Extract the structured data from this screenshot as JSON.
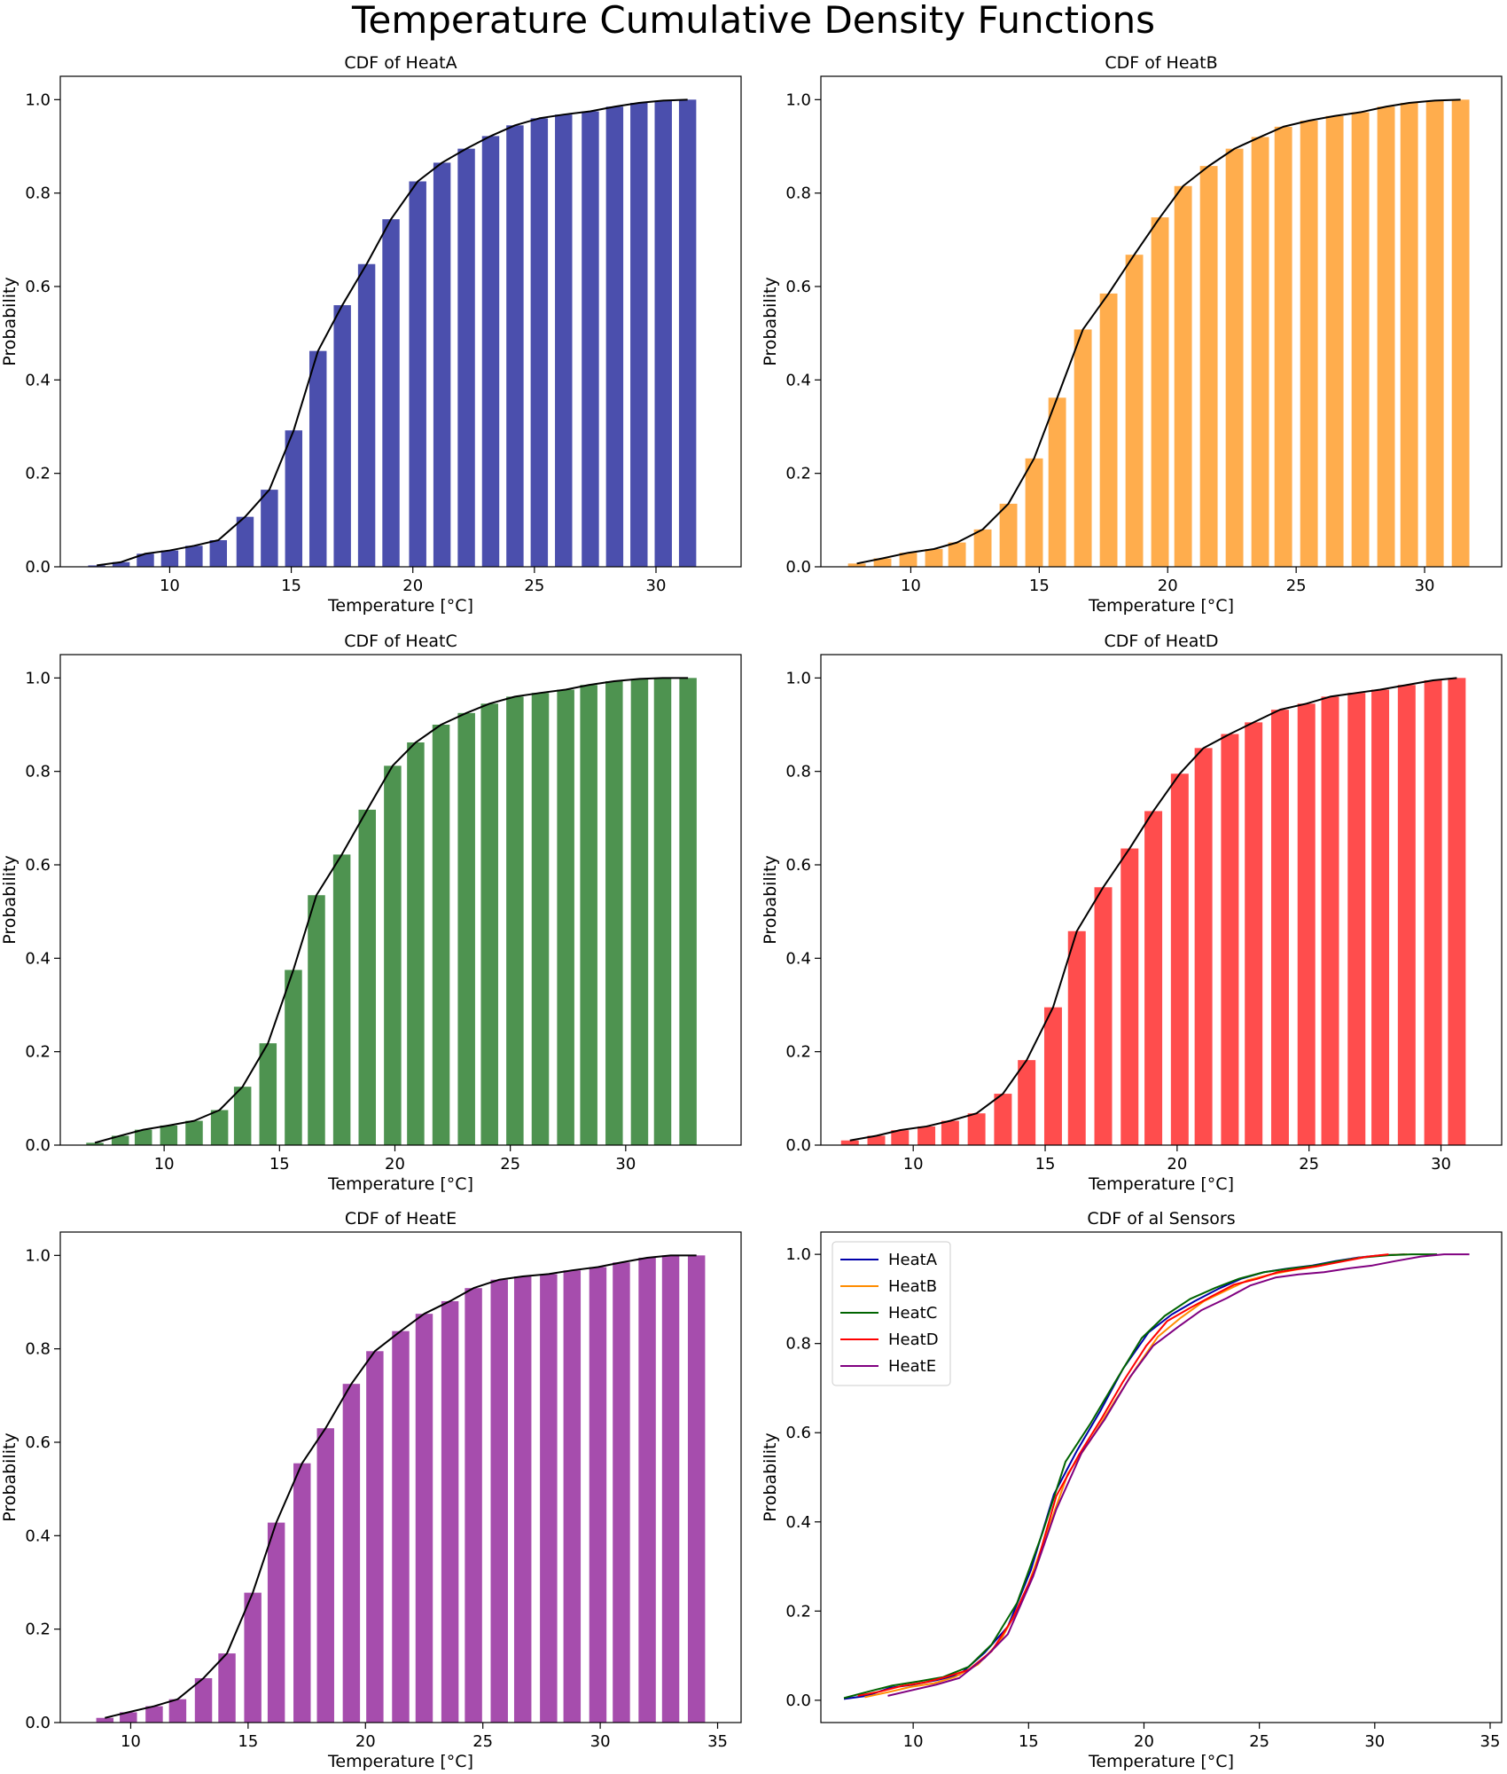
{
  "page": {
    "title": "Temperature Cumulative Density Functions"
  },
  "chart_data": [
    {
      "type": "bar",
      "title": "CDF of HeatA",
      "xlabel": "Temperature [°C]",
      "ylabel": "Probability",
      "bar_color": "#4b4fad",
      "line_color": "#000000",
      "xlim": [
        5.5,
        33.5
      ],
      "ylim": [
        0,
        1.05
      ],
      "xticks": [
        10,
        15,
        20,
        25,
        30
      ],
      "yticks": [
        0.0,
        0.2,
        0.4,
        0.6,
        0.8,
        1.0
      ],
      "x": [
        7.0,
        8.0,
        9.0,
        10.0,
        11.0,
        12.0,
        13.1,
        14.1,
        15.1,
        16.1,
        17.1,
        18.1,
        19.1,
        20.2,
        21.2,
        22.2,
        23.2,
        24.2,
        25.2,
        26.2,
        27.3,
        28.3,
        29.3,
        30.3,
        31.3
      ],
      "values": [
        0.003,
        0.01,
        0.028,
        0.035,
        0.045,
        0.057,
        0.107,
        0.165,
        0.292,
        0.462,
        0.56,
        0.648,
        0.744,
        0.825,
        0.865,
        0.895,
        0.922,
        0.945,
        0.96,
        0.968,
        0.975,
        0.985,
        0.993,
        0.998,
        1.0
      ]
    },
    {
      "type": "bar",
      "title": "CDF of HeatB",
      "xlabel": "Temperature [°C]",
      "ylabel": "Probability",
      "bar_color": "#ffad4d",
      "line_color": "#000000",
      "xlim": [
        6.5,
        33.0
      ],
      "ylim": [
        0,
        1.05
      ],
      "xticks": [
        10,
        15,
        20,
        25,
        30
      ],
      "yticks": [
        0.0,
        0.2,
        0.4,
        0.6,
        0.8,
        1.0
      ],
      "x": [
        7.9,
        8.9,
        9.9,
        10.9,
        11.8,
        12.8,
        13.8,
        14.8,
        15.7,
        16.7,
        17.7,
        18.7,
        19.7,
        20.6,
        21.6,
        22.6,
        23.6,
        24.5,
        25.5,
        26.5,
        27.5,
        28.5,
        29.4,
        30.4,
        31.4
      ],
      "values": [
        0.007,
        0.018,
        0.03,
        0.038,
        0.052,
        0.08,
        0.135,
        0.232,
        0.362,
        0.508,
        0.585,
        0.668,
        0.748,
        0.815,
        0.858,
        0.895,
        0.92,
        0.942,
        0.955,
        0.965,
        0.973,
        0.985,
        0.993,
        0.998,
        1.0
      ]
    },
    {
      "type": "bar",
      "title": "CDF of HeatC",
      "xlabel": "Temperature [°C]",
      "ylabel": "Probability",
      "bar_color": "#4e9350",
      "line_color": "#000000",
      "xlim": [
        5.5,
        35.0
      ],
      "ylim": [
        0,
        1.05
      ],
      "xticks": [
        10,
        15,
        20,
        25,
        30
      ],
      "yticks": [
        0.0,
        0.2,
        0.4,
        0.6,
        0.8,
        1.0
      ],
      "x": [
        7.0,
        8.1,
        9.1,
        10.2,
        11.3,
        12.4,
        13.4,
        14.5,
        15.6,
        16.6,
        17.7,
        18.8,
        19.9,
        20.9,
        22.0,
        23.1,
        24.1,
        25.2,
        26.3,
        27.4,
        28.4,
        29.5,
        30.6,
        31.6,
        32.7
      ],
      "values": [
        0.005,
        0.02,
        0.033,
        0.042,
        0.052,
        0.075,
        0.125,
        0.218,
        0.375,
        0.535,
        0.622,
        0.718,
        0.812,
        0.862,
        0.9,
        0.925,
        0.945,
        0.96,
        0.968,
        0.975,
        0.985,
        0.993,
        0.998,
        1.0,
        1.0
      ]
    },
    {
      "type": "bar",
      "title": "CDF of HeatD",
      "xlabel": "Temperature [°C]",
      "ylabel": "Probability",
      "bar_color": "#ff4d4d",
      "line_color": "#000000",
      "xlim": [
        6.5,
        32.3
      ],
      "ylim": [
        0,
        1.05
      ],
      "xticks": [
        10,
        15,
        20,
        25,
        30
      ],
      "yticks": [
        0.0,
        0.2,
        0.4,
        0.6,
        0.8,
        1.0
      ],
      "x": [
        7.6,
        8.6,
        9.5,
        10.5,
        11.4,
        12.4,
        13.4,
        14.3,
        15.3,
        16.2,
        17.2,
        18.2,
        19.1,
        20.1,
        21.0,
        22.0,
        22.9,
        23.9,
        24.9,
        25.8,
        26.8,
        27.7,
        28.7,
        29.7,
        30.6
      ],
      "values": [
        0.01,
        0.02,
        0.032,
        0.04,
        0.052,
        0.068,
        0.11,
        0.182,
        0.295,
        0.458,
        0.552,
        0.635,
        0.715,
        0.795,
        0.85,
        0.88,
        0.905,
        0.932,
        0.945,
        0.96,
        0.968,
        0.975,
        0.985,
        0.995,
        1.0
      ]
    },
    {
      "type": "bar",
      "title": "CDF of HeatE",
      "xlabel": "Temperature [°C]",
      "ylabel": "Probability",
      "bar_color": "#a64dad",
      "line_color": "#000000",
      "xlim": [
        7.0,
        36.0
      ],
      "ylim": [
        0,
        1.05
      ],
      "xticks": [
        10,
        15,
        20,
        25,
        30,
        35
      ],
      "yticks": [
        0.0,
        0.2,
        0.4,
        0.6,
        0.8,
        1.0
      ],
      "x": [
        8.9,
        9.9,
        11.0,
        12.0,
        13.1,
        14.1,
        15.2,
        16.2,
        17.3,
        18.3,
        19.4,
        20.4,
        21.5,
        22.5,
        23.6,
        24.6,
        25.7,
        26.7,
        27.8,
        28.8,
        29.9,
        30.9,
        32.0,
        33.0,
        34.1
      ],
      "values": [
        0.01,
        0.022,
        0.035,
        0.05,
        0.095,
        0.148,
        0.278,
        0.428,
        0.555,
        0.63,
        0.725,
        0.795,
        0.838,
        0.875,
        0.902,
        0.93,
        0.948,
        0.955,
        0.96,
        0.968,
        0.975,
        0.985,
        0.995,
        1.0,
        1.0
      ]
    },
    {
      "type": "line",
      "title": "CDF of al Sensors",
      "xlabel": "Temperature [°C]",
      "ylabel": "Probability",
      "xlim": [
        6.0,
        35.5
      ],
      "ylim": [
        -0.05,
        1.05
      ],
      "xticks": [
        10,
        15,
        20,
        25,
        30,
        35
      ],
      "yticks": [
        0.0,
        0.2,
        0.4,
        0.6,
        0.8,
        1.0
      ],
      "legend_position": "upper-left",
      "series": [
        {
          "name": "HeatA",
          "color": "#0000aa",
          "x": [
            7.0,
            8.0,
            9.0,
            10.0,
            11.0,
            12.0,
            13.1,
            14.1,
            15.1,
            16.1,
            17.1,
            18.1,
            19.1,
            20.2,
            21.2,
            22.2,
            23.2,
            24.2,
            25.2,
            26.2,
            27.3,
            28.3,
            29.3,
            30.3,
            31.3
          ],
          "values": [
            0.003,
            0.01,
            0.028,
            0.035,
            0.045,
            0.057,
            0.107,
            0.165,
            0.292,
            0.462,
            0.56,
            0.648,
            0.744,
            0.825,
            0.865,
            0.895,
            0.922,
            0.945,
            0.96,
            0.968,
            0.975,
            0.985,
            0.993,
            0.998,
            1.0
          ]
        },
        {
          "name": "HeatB",
          "color": "#ff8c00",
          "x": [
            7.9,
            8.9,
            9.9,
            10.9,
            11.8,
            12.8,
            13.8,
            14.8,
            15.7,
            16.7,
            17.7,
            18.7,
            19.7,
            20.6,
            21.6,
            22.6,
            23.6,
            24.5,
            25.5,
            26.5,
            27.5,
            28.5,
            29.4,
            30.4,
            31.4
          ],
          "values": [
            0.007,
            0.018,
            0.03,
            0.038,
            0.052,
            0.08,
            0.135,
            0.232,
            0.362,
            0.508,
            0.585,
            0.668,
            0.748,
            0.815,
            0.858,
            0.895,
            0.92,
            0.942,
            0.955,
            0.965,
            0.973,
            0.985,
            0.993,
            0.998,
            1.0
          ]
        },
        {
          "name": "HeatC",
          "color": "#006400",
          "x": [
            7.0,
            8.1,
            9.1,
            10.2,
            11.3,
            12.4,
            13.4,
            14.5,
            15.6,
            16.6,
            17.7,
            18.8,
            19.9,
            20.9,
            22.0,
            23.1,
            24.1,
            25.2,
            26.3,
            27.4,
            28.4,
            29.5,
            30.6,
            31.6,
            32.7
          ],
          "values": [
            0.005,
            0.02,
            0.033,
            0.042,
            0.052,
            0.075,
            0.125,
            0.218,
            0.375,
            0.535,
            0.622,
            0.718,
            0.812,
            0.862,
            0.9,
            0.925,
            0.945,
            0.96,
            0.968,
            0.975,
            0.985,
            0.993,
            0.998,
            1.0,
            1.0
          ]
        },
        {
          "name": "HeatD",
          "color": "#ff0000",
          "x": [
            7.6,
            8.6,
            9.5,
            10.5,
            11.4,
            12.4,
            13.4,
            14.3,
            15.3,
            16.2,
            17.2,
            18.2,
            19.1,
            20.1,
            21.0,
            22.0,
            22.9,
            23.9,
            24.9,
            25.8,
            26.8,
            27.7,
            28.7,
            29.7,
            30.6
          ],
          "values": [
            0.01,
            0.02,
            0.032,
            0.04,
            0.052,
            0.068,
            0.11,
            0.182,
            0.295,
            0.458,
            0.552,
            0.635,
            0.715,
            0.795,
            0.85,
            0.88,
            0.905,
            0.932,
            0.945,
            0.96,
            0.968,
            0.975,
            0.985,
            0.995,
            1.0
          ]
        },
        {
          "name": "HeatE",
          "color": "#800080",
          "x": [
            8.9,
            9.9,
            11.0,
            12.0,
            13.1,
            14.1,
            15.2,
            16.2,
            17.3,
            18.3,
            19.4,
            20.4,
            21.5,
            22.5,
            23.6,
            24.6,
            25.7,
            26.7,
            27.8,
            28.8,
            29.9,
            30.9,
            32.0,
            33.0,
            34.1
          ],
          "values": [
            0.01,
            0.022,
            0.035,
            0.05,
            0.095,
            0.148,
            0.278,
            0.428,
            0.555,
            0.63,
            0.725,
            0.795,
            0.838,
            0.875,
            0.902,
            0.93,
            0.948,
            0.955,
            0.96,
            0.968,
            0.975,
            0.985,
            0.995,
            1.0,
            1.0
          ]
        }
      ]
    }
  ]
}
